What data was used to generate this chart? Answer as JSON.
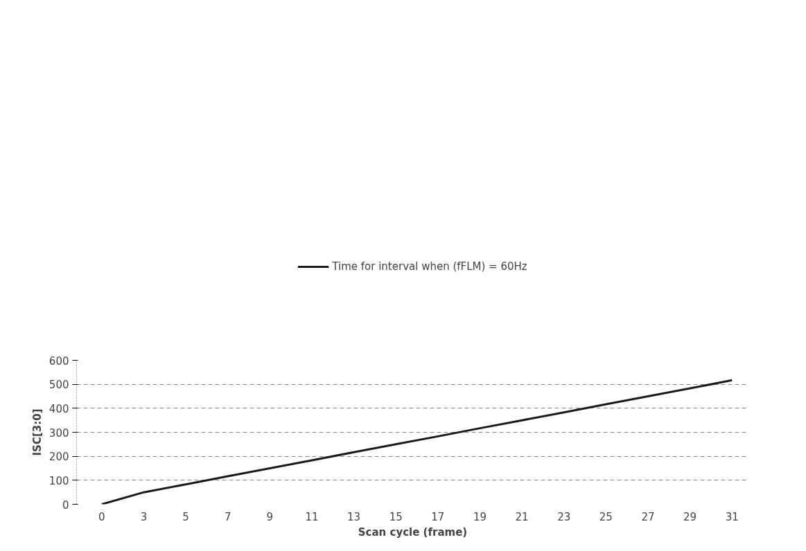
{
  "chart_data": {
    "type": "line",
    "xlabel": "Scan cycle (frame)",
    "ylabel": "ISC[3:0]",
    "categories": [
      "0",
      "3",
      "5",
      "7",
      "9",
      "11",
      "13",
      "15",
      "17",
      "19",
      "21",
      "23",
      "25",
      "27",
      "29",
      "31"
    ],
    "series": [
      {
        "name": "Time for interval when (fFLM) = 60Hz",
        "color": "#1a1a1a",
        "values": [
          0,
          50,
          83,
          117,
          150,
          183,
          217,
          250,
          283,
          317,
          350,
          383,
          417,
          450,
          483,
          517
        ]
      }
    ],
    "ylim": [
      0,
      600
    ],
    "yticks": [
      0,
      100,
      200,
      300,
      400,
      500,
      600
    ],
    "grid": "y",
    "legend": "top",
    "line_style": "solid",
    "marker": "none"
  }
}
